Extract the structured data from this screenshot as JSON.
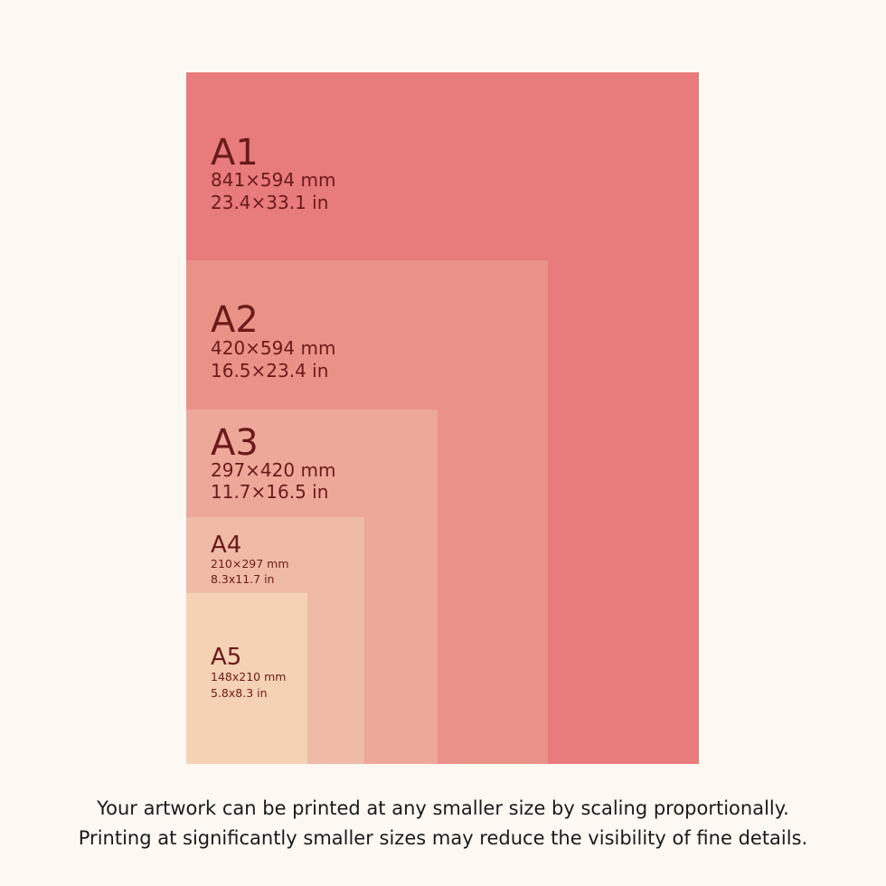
{
  "sheets": [
    {
      "name": "A1",
      "mm": "841×594 mm",
      "in": "23.4×33.1 in"
    },
    {
      "name": "A2",
      "mm": "420×594 mm",
      "in": "16.5×23.4 in"
    },
    {
      "name": "A3",
      "mm": "297×420 mm",
      "in": "11.7×16.5 in"
    },
    {
      "name": "A4",
      "mm": "210×297 mm",
      "in": "8.3x11.7 in"
    },
    {
      "name": "A5",
      "mm": "148x210 mm",
      "in": "5.8x8.3 in"
    }
  ],
  "caption": [
    "Your artwork can be printed at any smaller size by scaling proportionally.",
    "Printing at significantly smaller sizes may reduce the visibility of fine details."
  ]
}
